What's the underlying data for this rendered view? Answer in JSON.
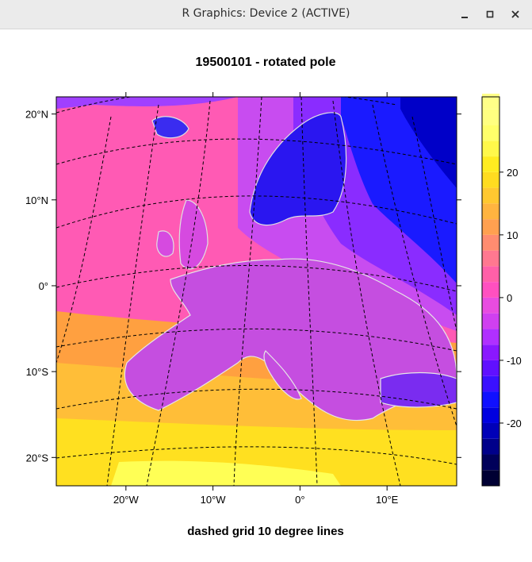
{
  "window": {
    "title": "R Graphics: Device 2 (ACTIVE)",
    "controls": [
      "minimize-icon",
      "maximize-icon",
      "close-icon"
    ]
  },
  "chart_data": {
    "type": "heatmap",
    "title": "19500101 - rotated pole",
    "xlabel": "dashed grid 10 degree lines",
    "ylabel": "",
    "x_ticks": [
      "20°W",
      "10°W",
      "0°",
      "10°E"
    ],
    "y_ticks": [
      "20°N",
      "10°N",
      "0°",
      "10°S",
      "20°S"
    ],
    "x_tick_values": [
      -20,
      -10,
      0,
      10
    ],
    "y_tick_values": [
      20,
      10,
      0,
      -10,
      -20
    ],
    "xlim": [
      -28,
      18
    ],
    "ylim": [
      -23.3,
      22
    ],
    "colorbar": {
      "min": -30,
      "max": 32,
      "step": 2.5,
      "ticks": [
        -20,
        -10,
        0,
        10,
        20
      ],
      "tick_labels": [
        "-20",
        "-10",
        "0",
        "10",
        "20"
      ]
    },
    "grid": "dashed",
    "colors": {
      "cold": "#000033",
      "blue": "#0000ff",
      "violet": "#8800ff",
      "magenta": "#d84ce0",
      "pink": "#ff4da6",
      "orange": "#ffa040",
      "yellow": "#ffee22",
      "light_yellow": "#ffff66"
    }
  }
}
